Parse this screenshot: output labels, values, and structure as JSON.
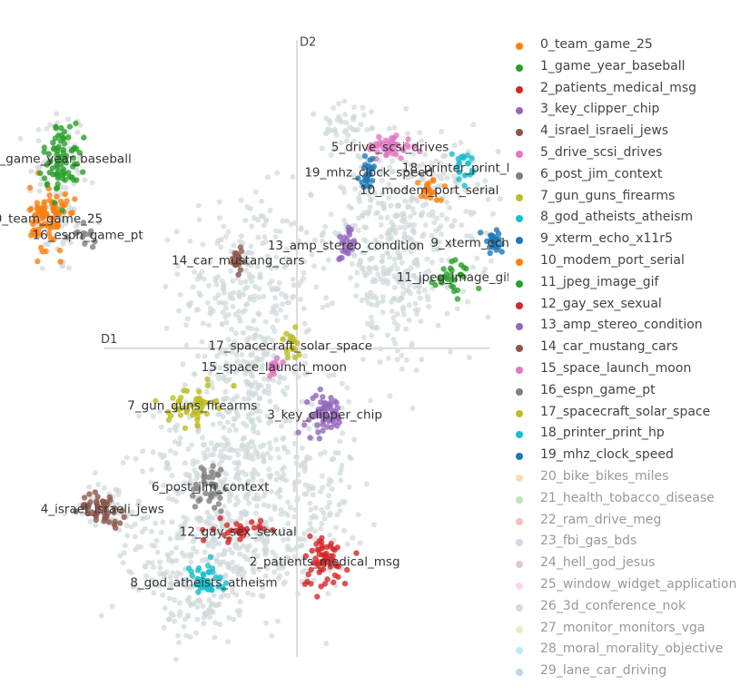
{
  "chart_data": {
    "type": "scatter",
    "xlabel": "D1",
    "ylabel": "D2",
    "xlim": [
      -10,
      10
    ],
    "ylim": [
      -10,
      10
    ],
    "grid": false,
    "legend_position": "right",
    "legend": [
      {
        "label": "0_team_game_25",
        "color": "#ff7f0e",
        "visible": true
      },
      {
        "label": "1_game_year_baseball",
        "color": "#2ca02c",
        "visible": true
      },
      {
        "label": "2_patients_medical_msg",
        "color": "#d62728",
        "visible": true
      },
      {
        "label": "3_key_clipper_chip",
        "color": "#9467bd",
        "visible": true
      },
      {
        "label": "4_israel_israeli_jews",
        "color": "#8c564b",
        "visible": true
      },
      {
        "label": "5_drive_scsi_drives",
        "color": "#e377c2",
        "visible": true
      },
      {
        "label": "6_post_jim_context",
        "color": "#7f7f7f",
        "visible": true
      },
      {
        "label": "7_gun_guns_firearms",
        "color": "#bcbd22",
        "visible": true
      },
      {
        "label": "8_god_atheists_atheism",
        "color": "#17becf",
        "visible": true
      },
      {
        "label": "9_xterm_echo_x11r5",
        "color": "#1f77b4",
        "visible": true
      },
      {
        "label": "10_modem_port_serial",
        "color": "#ff7f0e",
        "visible": true
      },
      {
        "label": "11_jpeg_image_gif",
        "color": "#2ca02c",
        "visible": true
      },
      {
        "label": "12_gay_sex_sexual",
        "color": "#d62728",
        "visible": true
      },
      {
        "label": "13_amp_stereo_condition",
        "color": "#9467bd",
        "visible": true
      },
      {
        "label": "14_car_mustang_cars",
        "color": "#8c564b",
        "visible": true
      },
      {
        "label": "15_space_launch_moon",
        "color": "#e377c2",
        "visible": true
      },
      {
        "label": "16_espn_game_pt",
        "color": "#7f7f7f",
        "visible": true
      },
      {
        "label": "17_spacecraft_solar_space",
        "color": "#bcbd22",
        "visible": true
      },
      {
        "label": "18_printer_print_hp",
        "color": "#17becf",
        "visible": true
      },
      {
        "label": "19_mhz_clock_speed",
        "color": "#1f77b4",
        "visible": true
      },
      {
        "label": "20_bike_bikes_miles",
        "color": "#ff7f0e",
        "visible": false
      },
      {
        "label": "21_health_tobacco_disease",
        "color": "#2ca02c",
        "visible": false
      },
      {
        "label": "22_ram_drive_meg",
        "color": "#d62728",
        "visible": false
      },
      {
        "label": "23_fbi_gas_bds",
        "color": "#9467bd",
        "visible": false
      },
      {
        "label": "24_hell_god_jesus",
        "color": "#8c564b",
        "visible": false
      },
      {
        "label": "25_window_widget_application",
        "color": "#e377c2",
        "visible": false
      },
      {
        "label": "26_3d_conference_nok",
        "color": "#7f7f7f",
        "visible": false
      },
      {
        "label": "27_monitor_monitors_vga",
        "color": "#bcbd22",
        "visible": false
      },
      {
        "label": "28_moral_morality_objective",
        "color": "#17becf",
        "visible": false
      },
      {
        "label": "29_lane_car_driving",
        "color": "#1f77b4",
        "visible": false
      }
    ],
    "clusters": [
      {
        "label": "0_team_game_25",
        "color": "#ff7f0e",
        "x": -7.6,
        "y": 4.35,
        "sx": 0.28,
        "sy": 0.55,
        "n": 90
      },
      {
        "label": "1_game_year_baseball",
        "color": "#2ca02c",
        "x": -7.2,
        "y": 6.35,
        "sx": 0.28,
        "sy": 0.6,
        "n": 80
      },
      {
        "label": "2_patients_medical_msg",
        "color": "#d62728",
        "x": 0.85,
        "y": -7.1,
        "sx": 0.35,
        "sy": 0.45,
        "n": 60
      },
      {
        "label": "3_key_clipper_chip",
        "color": "#9467bd",
        "x": 0.85,
        "y": -2.2,
        "sx": 0.3,
        "sy": 0.35,
        "n": 60
      },
      {
        "label": "4_israel_israeli_jews",
        "color": "#8c564b",
        "x": -5.95,
        "y": -5.35,
        "sx": 0.35,
        "sy": 0.25,
        "n": 50
      },
      {
        "label": "5_drive_scsi_drives",
        "color": "#e377c2",
        "x": 2.85,
        "y": 6.75,
        "sx": 0.35,
        "sy": 0.2,
        "n": 45
      },
      {
        "label": "6_post_jim_context",
        "color": "#7f7f7f",
        "x": -2.65,
        "y": -4.6,
        "sx": 0.3,
        "sy": 0.45,
        "n": 40
      },
      {
        "label": "7_gun_guns_firearms",
        "color": "#bcbd22",
        "x": -3.2,
        "y": -1.9,
        "sx": 0.35,
        "sy": 0.3,
        "n": 50
      },
      {
        "label": "8_god_atheists_atheism",
        "color": "#17becf",
        "x": -2.85,
        "y": -7.8,
        "sx": 0.3,
        "sy": 0.3,
        "n": 40
      },
      {
        "label": "9_xterm_echo_x11r5",
        "color": "#1f77b4",
        "x": 6.05,
        "y": 3.55,
        "sx": 0.2,
        "sy": 0.2,
        "n": 30
      },
      {
        "label": "10_modem_port_serial",
        "color": "#ff7f0e",
        "x": 4.05,
        "y": 5.3,
        "sx": 0.2,
        "sy": 0.2,
        "n": 20
      },
      {
        "label": "11_jpeg_image_gif",
        "color": "#2ca02c",
        "x": 4.8,
        "y": 2.4,
        "sx": 0.3,
        "sy": 0.3,
        "n": 30
      },
      {
        "label": "12_gay_sex_sexual",
        "color": "#d62728",
        "x": -1.8,
        "y": -6.1,
        "sx": 0.35,
        "sy": 0.18,
        "n": 30
      },
      {
        "label": "13_amp_stereo_condition",
        "color": "#9467bd",
        "x": 1.5,
        "y": 3.45,
        "sx": 0.15,
        "sy": 0.3,
        "n": 25
      },
      {
        "label": "14_car_mustang_cars",
        "color": "#8c564b",
        "x": -1.8,
        "y": 2.95,
        "sx": 0.12,
        "sy": 0.2,
        "n": 20
      },
      {
        "label": "15_space_launch_moon",
        "color": "#e377c2",
        "x": -0.7,
        "y": -0.6,
        "sx": 0.12,
        "sy": 0.18,
        "n": 15
      },
      {
        "label": "16_espn_game_pt",
        "color": "#7f7f7f",
        "x": -6.4,
        "y": 3.8,
        "sx": 0.25,
        "sy": 0.2,
        "n": 12
      },
      {
        "label": "17_spacecraft_solar_space",
        "color": "#bcbd22",
        "x": -0.2,
        "y": 0.1,
        "sx": 0.15,
        "sy": 0.3,
        "n": 20
      },
      {
        "label": "18_printer_print_hp",
        "color": "#17becf",
        "x": 5.05,
        "y": 6.05,
        "sx": 0.15,
        "sy": 0.25,
        "n": 20
      },
      {
        "label": "19_mhz_clock_speed",
        "color": "#1f77b4",
        "x": 2.2,
        "y": 5.9,
        "sx": 0.15,
        "sy": 0.25,
        "n": 25
      }
    ],
    "background_color": "#cfd8dc",
    "label_color": "#333333",
    "axis_line_color": "#dddddd"
  }
}
